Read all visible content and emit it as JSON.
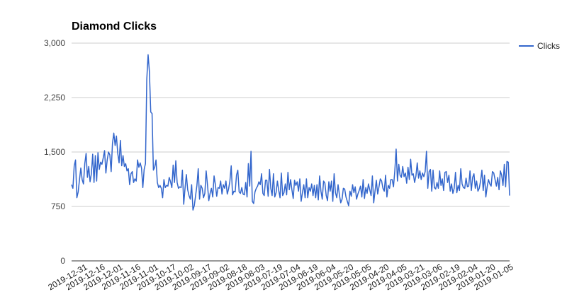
{
  "chart_data": {
    "type": "line",
    "title": "Diamond Clicks",
    "xlabel": "",
    "ylabel": "",
    "ylim": [
      0,
      3000
    ],
    "yticks": [
      "0",
      "750",
      "1,500",
      "2,250",
      "3,000"
    ],
    "ytick_values": [
      0,
      750,
      1500,
      2250,
      3000
    ],
    "x_order": "descending dates, 2019-12-31 on the left to 2019-01-01 on the right",
    "x_tick_labels": [
      "2019-12-31",
      "2019-12-16",
      "2019-12-01",
      "2019-11-16",
      "2019-11-01",
      "2019-10-17",
      "2019-10-02",
      "2019-09-17",
      "2019-09-02",
      "2019-08-18",
      "2019-08-03",
      "2019-07-19",
      "2019-07-04",
      "2019-06-19",
      "2019-06-04",
      "2019-05-20",
      "2019-05-05",
      "2019-04-20",
      "2019-04-05",
      "2019-03-21",
      "2019-03-06",
      "2019-02-19",
      "2019-02-04",
      "2019-01-20",
      "2019-01-05"
    ],
    "grid": true,
    "legend_position": "right",
    "series": [
      {
        "name": "Clicks",
        "color": "#3366cc",
        "values": [
          1050,
          1000,
          1310,
          1390,
          870,
          950,
          1120,
          1280,
          1120,
          1060,
          1340,
          1480,
          1150,
          1300,
          1090,
          1200,
          1470,
          1080,
          1450,
          1100,
          1490,
          1260,
          1360,
          1330,
          1420,
          1520,
          1210,
          1390,
          1500,
          1460,
          1230,
          1620,
          1760,
          1590,
          1720,
          1480,
          1350,
          1660,
          1310,
          1450,
          1300,
          1340,
          1240,
          1270,
          1050,
          1200,
          1230,
          1080,
          1130,
          1100,
          1390,
          1290,
          1350,
          1280,
          1010,
          1260,
          1340,
          2500,
          2840,
          2600,
          2050,
          2030,
          1250,
          1290,
          1390,
          1080,
          1010,
          1040,
          1000,
          870,
          1120,
          1010,
          1040,
          1030,
          1150,
          1090,
          1010,
          1320,
          1080,
          1380,
          1080,
          1000,
          1020,
          1010,
          1250,
          780,
          1000,
          1190,
          980,
          900,
          850,
          1050,
          700,
          760,
          900,
          1040,
          1270,
          850,
          1040,
          1000,
          870,
          930,
          1240,
          1050,
          830,
          930,
          1000,
          880,
          1170,
          1050,
          890,
          1010,
          1000,
          1100,
          920,
          1050,
          1000,
          1100,
          920,
          990,
          1100,
          1310,
          910,
          960,
          950,
          1180,
          1250,
          950,
          930,
          1010,
          920,
          910,
          1080,
          880,
          1340,
          1030,
          1510,
          820,
          790,
          950,
          1000,
          1030,
          1090,
          1050,
          1200,
          930,
          900,
          1110,
          1110,
          890,
          1260,
          1000,
          900,
          1200,
          880,
          940,
          1100,
          970,
          870,
          1210,
          900,
          940,
          1060,
          910,
          1220,
          980,
          1120,
          980,
          860,
          1110,
          1040,
          1090,
          960,
          1130,
          820,
          940,
          1050,
          870,
          1130,
          870,
          1010,
          960,
          1060,
          900,
          1040,
          870,
          1050,
          840,
          1170,
          960,
          850,
          1100,
          1070,
          900,
          830,
          1090,
          960,
          1100,
          820,
          1200,
          940,
          870,
          1050,
          910,
          800,
          850,
          1000,
          990,
          880,
          820,
          760,
          960,
          890,
          1050,
          940,
          1020,
          850,
          920,
          970,
          1030,
          880,
          1120,
          860,
          1010,
          930,
          1060,
          980,
          900,
          1170,
          800,
          960,
          1110,
          920,
          1020,
          1130,
          1100,
          1000,
          960,
          1180,
          880,
          1040,
          1000,
          1120,
          1120,
          1020,
          1240,
          1540,
          1100,
          1330,
          1180,
          1150,
          1300,
          1160,
          1210,
          1070,
          1290,
          1120,
          1400,
          1180,
          1200,
          1080,
          1170,
          1350,
          1140,
          1240,
          1120,
          1210,
          1160,
          1230,
          1510,
          1000,
          1230,
          1260,
          960,
          1250,
          1010,
          990,
          1080,
          1000,
          1240,
          1040,
          1130,
          970,
          1220,
          1230,
          1080,
          1180,
          960,
          1060,
          930,
          1000,
          1220,
          940,
          1040,
          970,
          1270,
          1060,
          1010,
          1000,
          1140,
          1020,
          1030,
          1240,
          970,
          1150,
          1200,
          1000,
          1100,
          960,
          1000,
          1100,
          1250,
          970,
          1180,
          880,
          1020,
          1120,
          1060,
          1030,
          1230,
          1210,
          1120,
          1030,
          1150,
          980,
          1240,
          1180,
          1040,
          1330,
          1020,
          1370,
          1360,
          900
        ]
      }
    ]
  }
}
